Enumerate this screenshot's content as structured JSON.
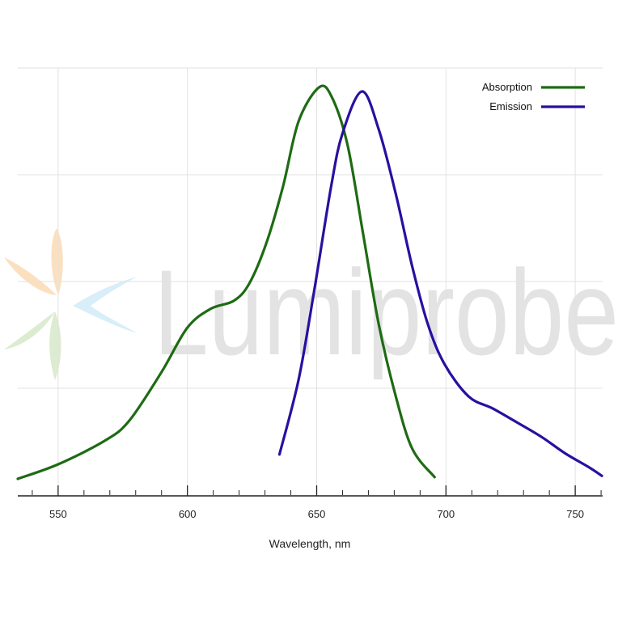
{
  "chart_data": {
    "type": "line",
    "title": "",
    "xlabel": "Wavelength, nm",
    "ylabel": "",
    "xlim": [
      534.4,
      760.6
    ],
    "ylim": [
      0,
      1
    ],
    "x_ticks": [
      550,
      600,
      650,
      700,
      750
    ],
    "x_minor_step": 10,
    "y_grid": [
      0,
      0.25,
      0.5,
      0.75,
      1
    ],
    "grid": true,
    "legend": "top-right",
    "series": [
      {
        "name": "Absorption",
        "color": "#1e6b14",
        "x": [
          534.4,
          550,
          568,
          577.5,
          590,
          600,
          609,
          618,
          624,
          630.6,
          637,
          643,
          651,
          656,
          662,
          668,
          674,
          680.6,
          687,
          695.6
        ],
        "y": [
          0.038,
          0.072,
          0.127,
          0.174,
          0.288,
          0.392,
          0.436,
          0.455,
          0.496,
          0.591,
          0.723,
          0.875,
          0.955,
          0.93,
          0.818,
          0.61,
          0.4,
          0.231,
          0.108,
          0.042
        ]
      },
      {
        "name": "Emission",
        "color": "#2a0fa0",
        "x": [
          635.6,
          643,
          649,
          655.6,
          660,
          667.5,
          674,
          680.6,
          687,
          693,
          699.4,
          708.75,
          718,
          727.5,
          737,
          746,
          755.6,
          760.3
        ],
        "y": [
          0.095,
          0.27,
          0.477,
          0.723,
          0.847,
          0.945,
          0.856,
          0.705,
          0.534,
          0.4,
          0.307,
          0.231,
          0.203,
          0.17,
          0.136,
          0.098,
          0.064,
          0.045
        ]
      }
    ]
  },
  "watermark": {
    "text": "Lumiprobe"
  }
}
